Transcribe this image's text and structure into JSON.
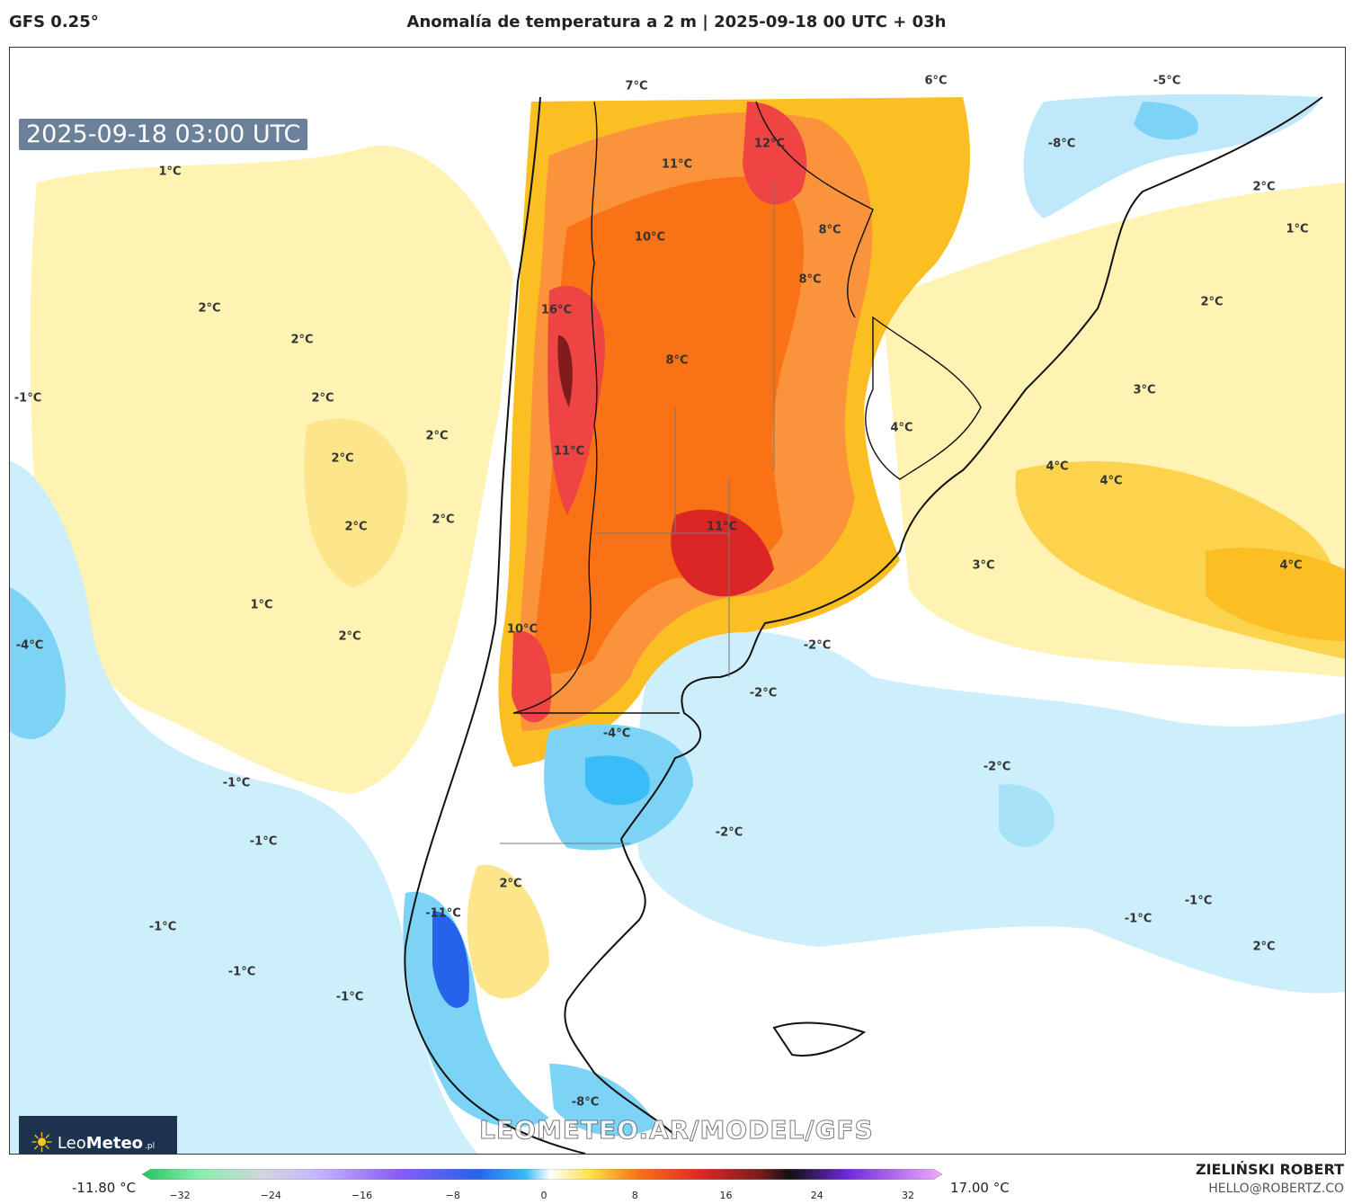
{
  "header": {
    "model": "GFS 0.25°",
    "title": "Anomalía de temperatura a 2 m | 2025-09-18 00 UTC + 03h"
  },
  "timestamp": "2025-09-18 03:00 UTC",
  "logo": {
    "brand_light": "Leo",
    "brand_bold": "Meteo",
    "tld": ".pl"
  },
  "watermark": "LEOMETEO.AR/MODEL/GFS",
  "colorbar": {
    "min_label": "-11.80 °C",
    "max_label": "17.00 °C",
    "ticks": [
      "−32",
      "−24",
      "−16",
      "−8",
      "0",
      "8",
      "16",
      "24",
      "32"
    ]
  },
  "credit": {
    "author": "ZIELIŃSKI ROBERT",
    "email": "HELLO@ROBERTZ.CO"
  },
  "labels": [
    "1°C",
    "2°C",
    "2°C",
    "-1°C",
    "2°C",
    "2°C",
    "2°C",
    "2°C",
    "2°C",
    "-4°C",
    "1°C",
    "2°C",
    "-1°C",
    "-1°C",
    "-1°C",
    "-1°C",
    "-1°C",
    "-11°C",
    "2°C",
    "-8°C",
    "-4°C",
    "-2°C",
    "-2°C",
    "-2°C",
    "-2°C",
    "-1°C",
    "-1°C",
    "7°C",
    "11°C",
    "12°C",
    "6°C",
    "-5°C",
    "-8°C",
    "2°C",
    "1°C",
    "2°C",
    "10°C",
    "8°C",
    "8°C",
    "16°C",
    "8°C",
    "11°C",
    "11°C",
    "10°C",
    "3°C",
    "4°C",
    "4°C",
    "4°C",
    "3°C",
    "4°C",
    "2°C"
  ]
}
